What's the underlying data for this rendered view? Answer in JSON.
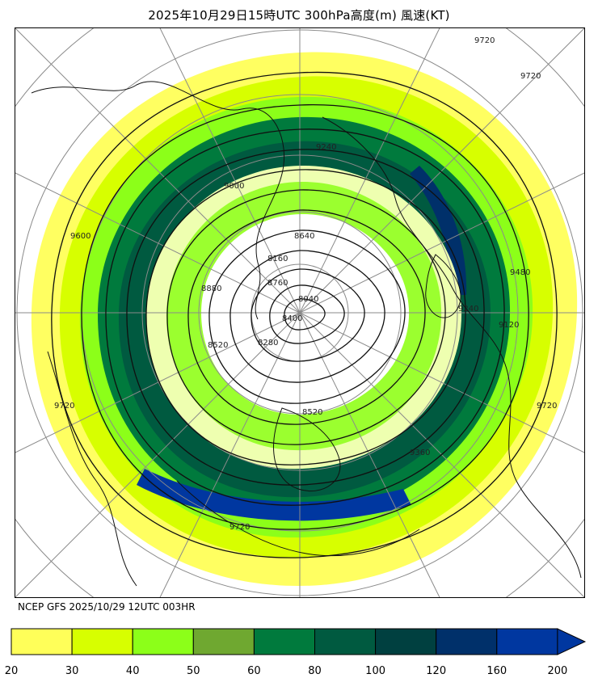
{
  "title": "2025年10月29日15時UTC 300hPa高度(m) 風速(KT)",
  "source_label": "NCEP GFS 2025/10/29 12UTC 003HR",
  "map": {
    "projection": "north-polar-stereographic",
    "contour_variable": "300hPa geopotential height (m)",
    "shaded_variable": "wind speed (KT)",
    "contour_labels": [
      "8040",
      "8160",
      "8280",
      "8400",
      "8520",
      "8640",
      "8760",
      "8880",
      "9000",
      "9120",
      "9240",
      "9360",
      "9480",
      "9600",
      "9720"
    ]
  },
  "legend": {
    "ticks": [
      "20",
      "30",
      "40",
      "50",
      "60",
      "80",
      "100",
      "120",
      "160",
      "200"
    ],
    "colors": [
      "#ffff59",
      "#d7ff00",
      "#8cff19",
      "#6fa830",
      "#007a3d",
      "#005a40",
      "#004040",
      "#00306a",
      "#0037a0"
    ],
    "extend_color": "#0037a0"
  }
}
